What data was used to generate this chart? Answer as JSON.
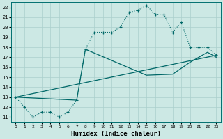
{
  "title": "",
  "xlabel": "Humidex (Indice chaleur)",
  "bg_color": "#cce8e4",
  "line_color": "#006868",
  "grid_color": "#aacfcc",
  "xlim": [
    -0.5,
    23.5
  ],
  "ylim": [
    10.5,
    22.5
  ],
  "xticks": [
    0,
    1,
    2,
    3,
    4,
    5,
    6,
    7,
    8,
    9,
    10,
    11,
    12,
    13,
    14,
    15,
    16,
    17,
    18,
    19,
    20,
    21,
    22,
    23
  ],
  "yticks": [
    11,
    12,
    13,
    14,
    15,
    16,
    17,
    18,
    19,
    20,
    21,
    22
  ],
  "line1_x": [
    0,
    1,
    2,
    3,
    4,
    5,
    6,
    7,
    8,
    9,
    10,
    11,
    12,
    13,
    14,
    15,
    16,
    17,
    18,
    19,
    20,
    21,
    22,
    23
  ],
  "line1_y": [
    13,
    12,
    11,
    11.5,
    11.5,
    11,
    11.5,
    12.7,
    17.8,
    19.5,
    19.5,
    19.5,
    20.0,
    21.5,
    21.7,
    22.2,
    21.3,
    21.3,
    19.5,
    20.5,
    18.0,
    18.0,
    18.0,
    17.2
  ],
  "line2_x": [
    0,
    23
  ],
  "line2_y": [
    13,
    17.2
  ],
  "line3_x": [
    0,
    7,
    8,
    15,
    18,
    20,
    21,
    22,
    23
  ],
  "line3_y": [
    13,
    12.7,
    17.8,
    15.2,
    15.3,
    16.5,
    17.0,
    17.5,
    17.0
  ]
}
